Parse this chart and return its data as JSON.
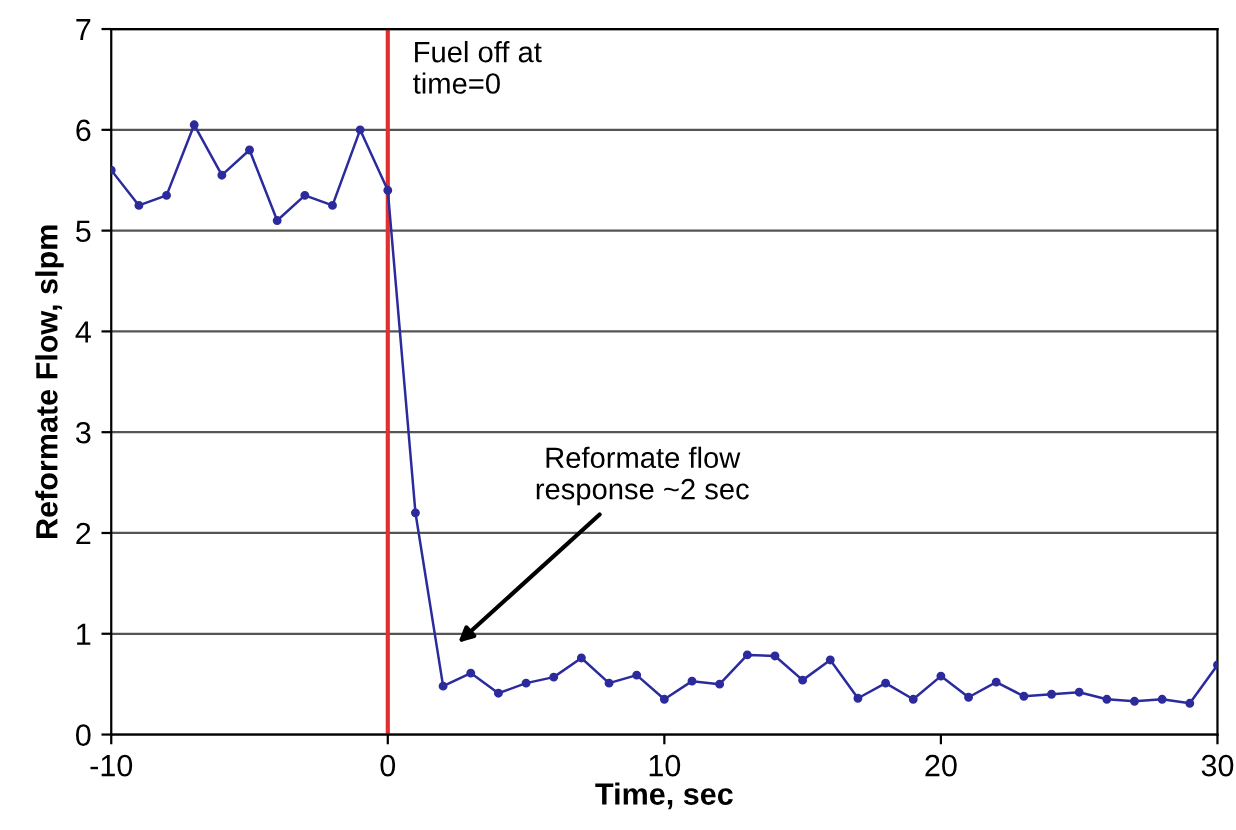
{
  "chart_data": {
    "type": "line",
    "xlabel": "Time, sec",
    "ylabel": "Reformate Flow, slpm",
    "x": [
      -10,
      -9,
      -8,
      -7,
      -6,
      -5,
      -4,
      -3,
      -2,
      -1,
      0,
      1,
      2,
      3,
      4,
      5,
      6,
      7,
      8,
      9,
      10,
      11,
      12,
      13,
      14,
      15,
      16,
      17,
      18,
      19,
      20,
      21,
      22,
      23,
      24,
      25,
      26,
      27,
      28,
      29,
      30
    ],
    "series": [
      {
        "color": "#2b2b9e",
        "values": [
          5.6,
          5.25,
          5.35,
          6.05,
          5.55,
          5.8,
          5.1,
          5.35,
          5.25,
          6.0,
          5.4,
          2.2,
          0.48,
          0.61,
          0.41,
          0.51,
          0.57,
          0.76,
          0.51,
          0.59,
          0.35,
          0.53,
          0.5,
          0.79,
          0.78,
          0.54,
          0.74,
          0.36,
          0.51,
          0.35,
          0.58,
          0.37,
          0.52,
          0.38,
          0.4,
          0.42,
          0.35,
          0.33,
          0.35,
          0.31,
          0.69
        ]
      }
    ],
    "xlim": [
      -10,
      30
    ],
    "xticks": [
      -10,
      0,
      10,
      20,
      30
    ],
    "ylim": [
      0,
      7
    ],
    "yticks": [
      0,
      1,
      2,
      3,
      4,
      5,
      6,
      7
    ],
    "grid": "y",
    "marker": "circle",
    "line_style": "solid",
    "legend": false,
    "ref_lines": [
      {
        "axis": "x",
        "value": 0,
        "color": "#e03030"
      }
    ],
    "annotations": [
      {
        "text": "Fuel off at\ntime=0",
        "x": 0,
        "y": 6.3
      },
      "Reformate flow\nresponse ~2 sec"
    ]
  }
}
